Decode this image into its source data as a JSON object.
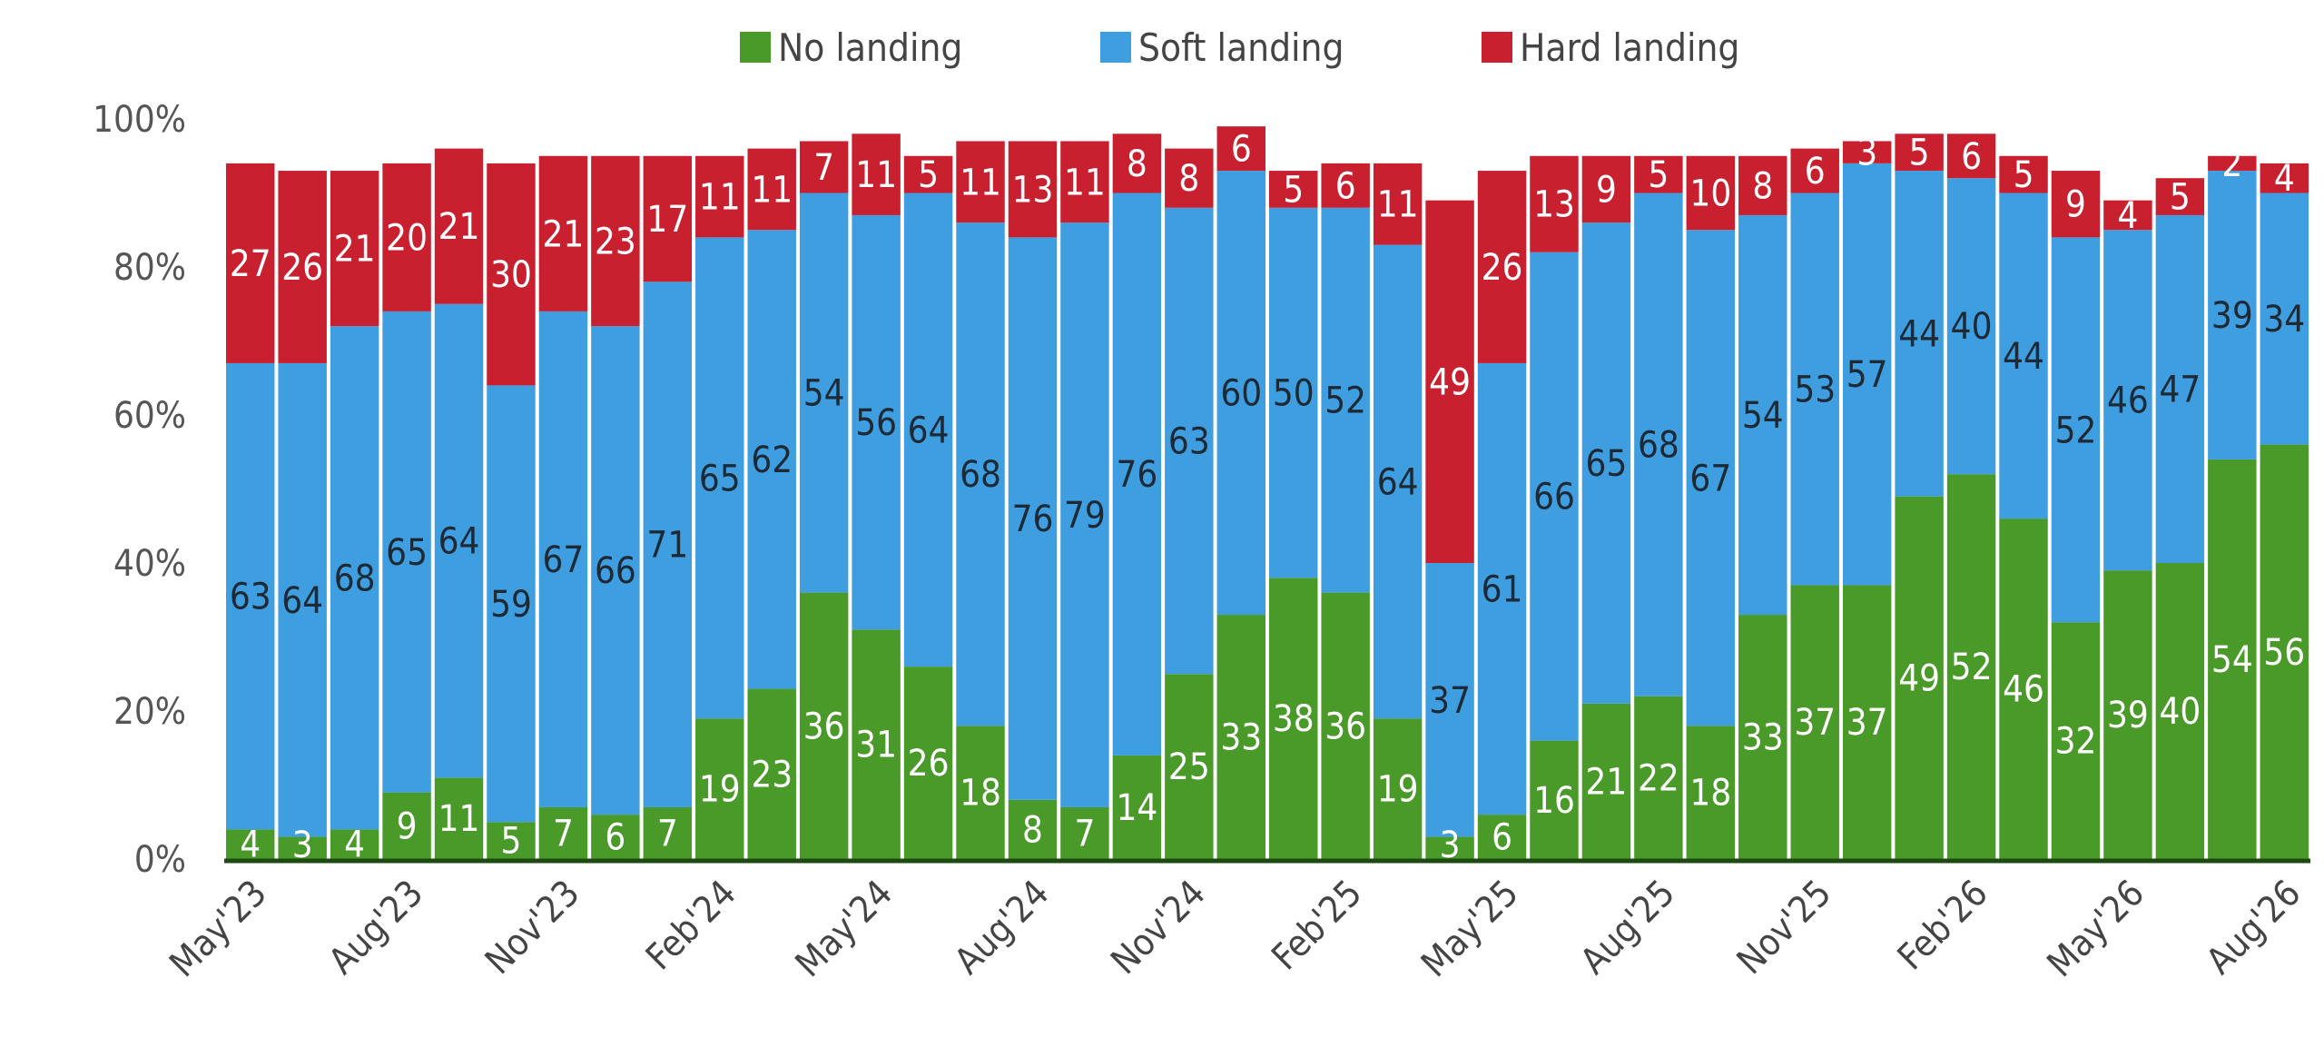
{
  "chart_data": {
    "type": "bar",
    "stacked": true,
    "categories": [
      "May'23",
      "Jun'23",
      "Jul'23",
      "Aug'23",
      "Sep'23",
      "Oct'23",
      "Nov'23",
      "Dec'23",
      "Jan'24",
      "Feb'24",
      "Mar'24",
      "Apr'24",
      "May'24",
      "Jun'24",
      "Jul'24",
      "Aug'24",
      "Sep'24",
      "Oct'24",
      "Nov'24",
      "Dec'24",
      "Jan'25",
      "Feb'25",
      "Mar'25",
      "Apr'25",
      "May'25",
      "Jun'25",
      "Jul'25",
      "Aug'25",
      "Sep'25",
      "Oct'25",
      "Nov'25",
      "Dec'25",
      "Jan'26",
      "Feb'26",
      "Mar'26",
      "Apr'26",
      "May'26",
      "Jun'26",
      "Jul'26",
      "Aug'26"
    ],
    "tick_labels": [
      "May'23",
      "Aug'23",
      "Nov'23",
      "Feb'24",
      "May'24",
      "Aug'24",
      "Nov'24",
      "Feb'25",
      "May'25",
      "Aug'25",
      "Nov'25",
      "Feb'26",
      "May'26",
      "Aug'26"
    ],
    "yticks": [
      "0%",
      "20%",
      "40%",
      "60%",
      "80%",
      "100%"
    ],
    "ylim": [
      0,
      100
    ],
    "legend_position": "top",
    "series": [
      {
        "name": "No landing",
        "color": "#4a9a2a",
        "values": [
          4,
          3,
          4,
          9,
          11,
          5,
          7,
          6,
          7,
          19,
          23,
          36,
          31,
          26,
          18,
          8,
          7,
          14,
          25,
          33,
          38,
          36,
          19,
          3,
          6,
          16,
          21,
          22,
          18,
          33,
          37,
          37,
          49,
          52,
          46,
          32,
          39,
          40,
          54,
          56
        ]
      },
      {
        "name": "Soft landing",
        "color": "#3f9ee0",
        "values": [
          63,
          64,
          68,
          65,
          64,
          59,
          67,
          66,
          71,
          65,
          62,
          54,
          56,
          64,
          68,
          76,
          79,
          76,
          63,
          60,
          50,
          52,
          64,
          37,
          61,
          66,
          65,
          68,
          67,
          54,
          53,
          57,
          44,
          40,
          44,
          52,
          46,
          47,
          39,
          34
        ]
      },
      {
        "name": "Hard landing",
        "color": "#c8202f",
        "values": [
          27,
          26,
          21,
          20,
          21,
          30,
          21,
          23,
          17,
          11,
          11,
          7,
          11,
          5,
          11,
          13,
          11,
          8,
          8,
          6,
          5,
          6,
          11,
          49,
          26,
          13,
          9,
          5,
          10,
          8,
          6,
          3,
          5,
          6,
          5,
          9,
          4,
          5,
          2,
          4
        ]
      }
    ],
    "title": "",
    "xlabel": "",
    "ylabel": ""
  }
}
